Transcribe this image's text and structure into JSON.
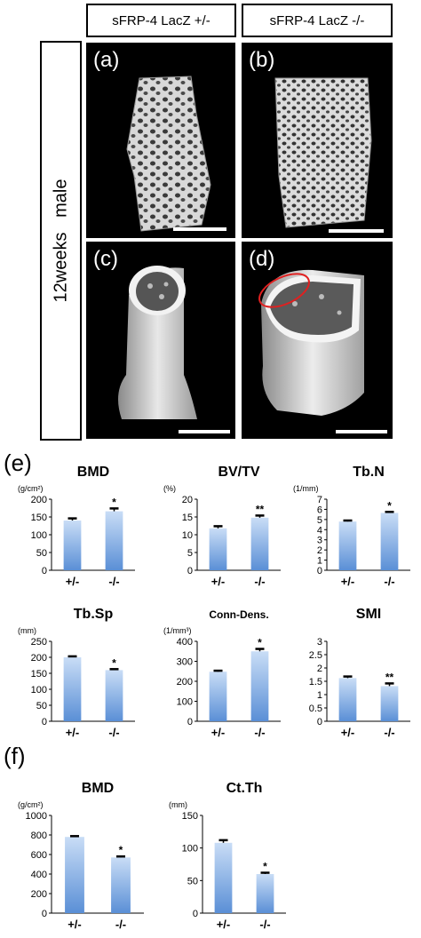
{
  "headers": {
    "left": "sFRP-4 LacZ +/-",
    "right": "sFRP-4 LacZ -/-"
  },
  "side_label": "12weeks   male",
  "panels": [
    {
      "label": "(a)"
    },
    {
      "label": "(b)"
    },
    {
      "label": "(c)"
    },
    {
      "label": "(d)"
    }
  ],
  "section_labels": {
    "e": "(e)",
    "f": "(f)"
  },
  "colors": {
    "bar_top": "#c9ddf6",
    "bar_bottom": "#5a8fd6",
    "panel_bg": "#000000",
    "highlight": "#e02020"
  },
  "chart_data": [
    {
      "id": "bmd-trab",
      "type": "bar",
      "title": "BMD",
      "unit": "(g/cm²)",
      "categories": [
        "+/-",
        "-/-"
      ],
      "values": [
        140,
        166
      ],
      "errors": [
        6,
        8
      ],
      "significance": [
        "",
        "*"
      ],
      "ylim": [
        0,
        200
      ],
      "yticks": [
        0,
        50,
        100,
        150,
        200
      ]
    },
    {
      "id": "bvtv",
      "type": "bar",
      "title": "BV/TV",
      "unit": "(%)",
      "categories": [
        "+/-",
        "-/-"
      ],
      "values": [
        11.8,
        14.8
      ],
      "errors": [
        0.6,
        0.6
      ],
      "significance": [
        "",
        "**"
      ],
      "ylim": [
        0,
        20
      ],
      "yticks": [
        0,
        5,
        10,
        15,
        20
      ]
    },
    {
      "id": "tbn",
      "type": "bar",
      "title": "Tb.N",
      "unit": "(1/mm)",
      "categories": [
        "+/-",
        "-/-"
      ],
      "values": [
        4.8,
        5.65
      ],
      "errors": [
        0.1,
        0.1
      ],
      "significance": [
        "",
        "*"
      ],
      "ylim": [
        0,
        7
      ],
      "yticks": [
        0,
        1,
        2,
        3,
        4,
        5,
        6,
        7
      ]
    },
    {
      "id": "tbsp",
      "type": "bar",
      "title": "Tb.Sp",
      "unit": "(mm)",
      "categories": [
        "+/-",
        "-/-"
      ],
      "values": [
        200,
        160
      ],
      "errors": [
        3,
        3
      ],
      "significance": [
        "",
        "*"
      ],
      "ylim": [
        0,
        250
      ],
      "yticks": [
        0,
        50,
        100,
        150,
        200,
        250
      ]
    },
    {
      "id": "conn",
      "type": "bar",
      "title": "Conn-Dens.",
      "unit": "(1/mm³)",
      "categories": [
        "+/-",
        "-/-"
      ],
      "values": [
        248,
        350
      ],
      "errors": [
        5,
        12
      ],
      "significance": [
        "",
        "*"
      ],
      "ylim": [
        0,
        400
      ],
      "yticks": [
        0,
        100,
        200,
        300,
        400
      ]
    },
    {
      "id": "smi",
      "type": "bar",
      "title": "SMI",
      "unit": "",
      "categories": [
        "+/-",
        "-/-"
      ],
      "values": [
        1.62,
        1.32
      ],
      "errors": [
        0.06,
        0.1
      ],
      "significance": [
        "",
        "**"
      ],
      "ylim": [
        0,
        3
      ],
      "yticks": [
        0,
        0.5,
        1,
        1.5,
        2,
        2.5,
        3
      ]
    },
    {
      "id": "bmd-cort",
      "type": "bar",
      "title": "BMD",
      "unit": "(g/cm²)",
      "categories": [
        "+/-",
        "-/-"
      ],
      "values": [
        780,
        570
      ],
      "errors": [
        8,
        10
      ],
      "significance": [
        "",
        "*"
      ],
      "ylim": [
        0,
        1000
      ],
      "yticks": [
        0,
        200,
        400,
        600,
        800,
        1000
      ]
    },
    {
      "id": "ctth",
      "type": "bar",
      "title": "Ct.Th",
      "unit": "(mm)",
      "categories": [
        "+/-",
        "-/-"
      ],
      "values": [
        108,
        60
      ],
      "errors": [
        4,
        2
      ],
      "significance": [
        "",
        "*"
      ],
      "ylim": [
        0,
        150
      ],
      "yticks": [
        0,
        50,
        100,
        150
      ]
    }
  ]
}
